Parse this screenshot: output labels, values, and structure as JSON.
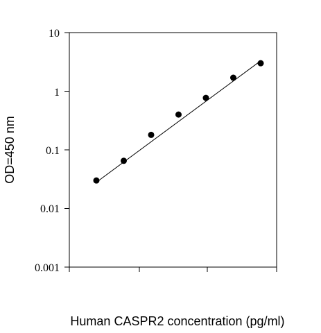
{
  "chart_data": {
    "type": "scatter",
    "title": "",
    "xlabel": "Human CASPR2 concentration (pg/ml)",
    "ylabel": "OD=450 nm",
    "y_scale": "log",
    "ylim": [
      0.001,
      10
    ],
    "y_ticks": [
      "10",
      "1",
      "0.1",
      "0.01",
      "0.001"
    ],
    "y_tick_values": [
      10,
      1,
      0.1,
      0.01,
      0.001
    ],
    "x_scale": "log",
    "x_tick_labels_shown": false,
    "series": [
      {
        "points": [
          {
            "x": 1,
            "y": 0.03
          },
          {
            "x": 2,
            "y": 0.065
          },
          {
            "x": 3,
            "y": 0.18
          },
          {
            "x": 4,
            "y": 0.4
          },
          {
            "x": 5,
            "y": 0.77
          },
          {
            "x": 6,
            "y": 1.7
          },
          {
            "x": 7,
            "y": 3.0
          }
        ],
        "fit_line": {
          "type": "linear-log-log",
          "from": {
            "x": 1,
            "y": 0.028
          },
          "to": {
            "x": 7,
            "y": 3.3
          }
        }
      }
    ],
    "grid": false,
    "legend": "none",
    "colors": {
      "points": "#000000",
      "fit_line": "#000000"
    }
  }
}
